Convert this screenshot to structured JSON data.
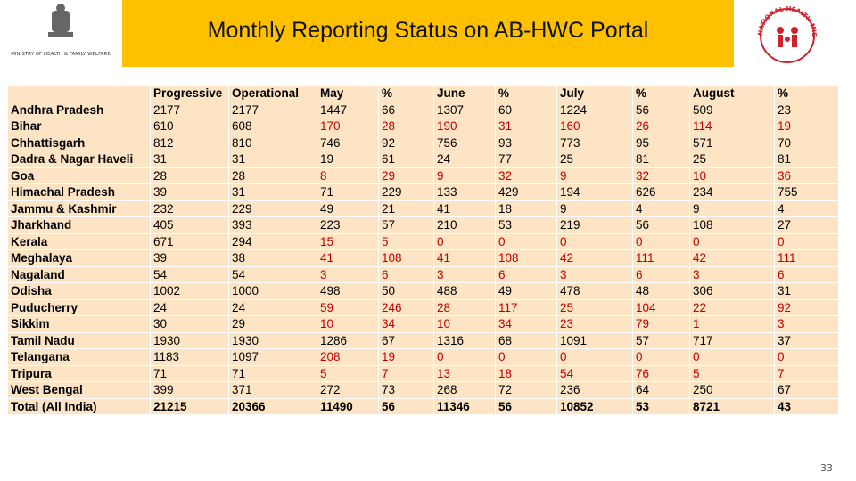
{
  "header": {
    "title": "Monthly Reporting Status on AB-HWC Portal",
    "left_logo_text": "MINISTRY OF HEALTH & FAMILY WELFARE",
    "right_logo_text": "NATIONAL HEALTH MISSION"
  },
  "table": {
    "highlight_color": "#c00000",
    "columns": [
      "",
      "Progressive",
      "Operational",
      "May",
      "%",
      "June",
      "%",
      "July",
      "%",
      "August",
      "%"
    ],
    "rows": [
      {
        "cells": [
          "Andhra Pradesh",
          2177,
          2177,
          1447,
          66,
          1307,
          60,
          1224,
          56,
          509,
          23
        ],
        "highlight": false
      },
      {
        "cells": [
          "Bihar",
          610,
          608,
          170,
          28,
          190,
          31,
          160,
          26,
          114,
          19
        ],
        "highlight": true
      },
      {
        "cells": [
          "Chhattisgarh",
          812,
          810,
          746,
          92,
          756,
          93,
          773,
          95,
          571,
          70
        ],
        "highlight": false
      },
      {
        "cells": [
          "Dadra & Nagar Haveli",
          31,
          31,
          19,
          61,
          24,
          77,
          25,
          81,
          25,
          81
        ],
        "highlight": false
      },
      {
        "cells": [
          "Goa",
          28,
          28,
          8,
          29,
          9,
          32,
          9,
          32,
          10,
          36
        ],
        "highlight": true
      },
      {
        "cells": [
          "Himachal Pradesh",
          39,
          31,
          71,
          229,
          133,
          429,
          194,
          626,
          234,
          755
        ],
        "highlight": false
      },
      {
        "cells": [
          "Jammu & Kashmir",
          232,
          229,
          49,
          21,
          41,
          18,
          9,
          4,
          9,
          4
        ],
        "highlight": false
      },
      {
        "cells": [
          "Jharkhand",
          405,
          393,
          223,
          57,
          210,
          53,
          219,
          56,
          108,
          27
        ],
        "highlight": false
      },
      {
        "cells": [
          "Kerala",
          671,
          294,
          15,
          5,
          0,
          0,
          0,
          0,
          0,
          0
        ],
        "highlight": true
      },
      {
        "cells": [
          "Meghalaya",
          39,
          38,
          41,
          108,
          41,
          108,
          42,
          111,
          42,
          111
        ],
        "highlight": true
      },
      {
        "cells": [
          "Nagaland",
          54,
          54,
          3,
          6,
          3,
          6,
          3,
          6,
          3,
          6
        ],
        "highlight": true
      },
      {
        "cells": [
          "Odisha",
          1002,
          1000,
          498,
          50,
          488,
          49,
          478,
          48,
          306,
          31
        ],
        "highlight": false
      },
      {
        "cells": [
          "Puducherry",
          24,
          24,
          59,
          246,
          28,
          117,
          25,
          104,
          22,
          92
        ],
        "highlight": true
      },
      {
        "cells": [
          "Sikkim",
          30,
          29,
          10,
          34,
          10,
          34,
          23,
          79,
          1,
          3
        ],
        "highlight": true
      },
      {
        "cells": [
          "Tamil Nadu",
          1930,
          1930,
          1286,
          67,
          1316,
          68,
          1091,
          57,
          717,
          37
        ],
        "highlight": false
      },
      {
        "cells": [
          "Telangana",
          1183,
          1097,
          208,
          19,
          0,
          0,
          0,
          0,
          0,
          0
        ],
        "highlight": true
      },
      {
        "cells": [
          "Tripura",
          71,
          71,
          5,
          7,
          13,
          18,
          54,
          76,
          5,
          7
        ],
        "highlight": true
      },
      {
        "cells": [
          "West Bengal",
          399,
          371,
          272,
          73,
          268,
          72,
          236,
          64,
          250,
          67
        ],
        "highlight": false
      }
    ],
    "total": [
      "Total (All India)",
      21215,
      20366,
      11490,
      56,
      11346,
      56,
      10852,
      53,
      8721,
      43
    ]
  },
  "footer": {
    "page_number": "33"
  }
}
